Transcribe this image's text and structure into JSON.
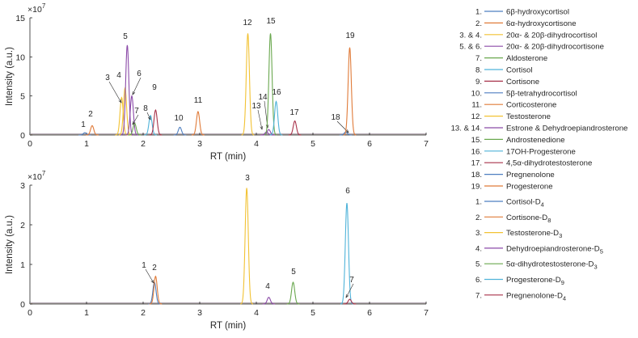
{
  "chart_data": [
    {
      "type": "line",
      "xlabel": "RT (min)",
      "ylabel": "Intensity (a.u.)",
      "exponent_label": "×10",
      "exponent_power": "7",
      "xlim": [
        0,
        7
      ],
      "ylim": [
        0,
        15
      ],
      "xticks": [
        0,
        1,
        2,
        3,
        4,
        5,
        6,
        7
      ],
      "yticks": [
        0,
        5,
        10,
        15
      ],
      "peaks": [
        {
          "label": "1",
          "x": 0.97,
          "y": 0.3,
          "color": "#4e7fc0"
        },
        {
          "label": "2",
          "x": 1.1,
          "y": 1.2,
          "color": "#e07b39"
        },
        {
          "label": "3",
          "x": 1.62,
          "y": 4.8,
          "color": "#f2c233"
        },
        {
          "label": "4",
          "x": 1.68,
          "y": 6.0,
          "color": "#f2c233"
        },
        {
          "label": "5",
          "x": 1.72,
          "y": 11.5,
          "color": "#8b4aa8"
        },
        {
          "label": "6",
          "x": 1.8,
          "y": 5.0,
          "color": "#8b4aa8"
        },
        {
          "label": "7",
          "x": 1.85,
          "y": 1.5,
          "color": "#6aa84f"
        },
        {
          "label": "8",
          "x": 2.13,
          "y": 2.5,
          "color": "#4fb3d9"
        },
        {
          "label": "9",
          "x": 2.22,
          "y": 3.2,
          "color": "#a8324a"
        },
        {
          "label": "10",
          "x": 2.65,
          "y": 1.0,
          "color": "#4e7fc0"
        },
        {
          "label": "11",
          "x": 2.97,
          "y": 3.0,
          "color": "#e07b39"
        },
        {
          "label": "12",
          "x": 3.85,
          "y": 13.0,
          "color": "#f2c233"
        },
        {
          "label": "13",
          "x": 4.18,
          "y": 0.4,
          "color": "#8b4aa8"
        },
        {
          "label": "14",
          "x": 4.22,
          "y": 0.7,
          "color": "#8b4aa8"
        },
        {
          "label": "15",
          "x": 4.25,
          "y": 13.0,
          "color": "#6aa84f"
        },
        {
          "label": "16",
          "x": 4.35,
          "y": 4.3,
          "color": "#4fb3d9"
        },
        {
          "label": "17",
          "x": 4.68,
          "y": 1.8,
          "color": "#a8324a"
        },
        {
          "label": "18",
          "x": 5.58,
          "y": 0.4,
          "color": "#4e7fc0"
        },
        {
          "label": "19",
          "x": 5.65,
          "y": 11.2,
          "color": "#e07b39"
        }
      ]
    },
    {
      "type": "line",
      "xlabel": "RT (min)",
      "ylabel": "Intensity (a.u.)",
      "exponent_label": "×10",
      "exponent_power": "7",
      "xlim": [
        0,
        7
      ],
      "ylim": [
        0,
        3
      ],
      "xticks": [
        0,
        1,
        2,
        3,
        4,
        5,
        6,
        7
      ],
      "yticks": [
        0,
        1,
        2,
        3
      ],
      "peaks": [
        {
          "label": "1",
          "x": 2.2,
          "y": 0.55,
          "color": "#4e7fc0"
        },
        {
          "label": "2",
          "x": 2.22,
          "y": 0.7,
          "color": "#e07b39"
        },
        {
          "label": "3",
          "x": 3.83,
          "y": 2.93,
          "color": "#f2c233"
        },
        {
          "label": "4",
          "x": 4.22,
          "y": 0.17,
          "color": "#8b4aa8"
        },
        {
          "label": "5",
          "x": 4.65,
          "y": 0.55,
          "color": "#6aa84f"
        },
        {
          "label": "6",
          "x": 5.6,
          "y": 2.55,
          "color": "#4fb3d9"
        },
        {
          "label": "7",
          "x": 5.65,
          "y": 0.12,
          "color": "#a8324a"
        }
      ]
    }
  ],
  "legend_top": [
    {
      "num": "1.",
      "name": "6β-hydroxycortisol",
      "color": "#4e7fc0"
    },
    {
      "num": "2.",
      "name": "6α-hydroxycortisone",
      "color": "#e07b39"
    },
    {
      "num": "3. & 4.",
      "name": "20α- & 20β-dihydrocortisol",
      "color": "#f2c233"
    },
    {
      "num": "5. & 6.",
      "name": "20α- & 20β-dihydrocortisone",
      "color": "#8b4aa8"
    },
    {
      "num": "7.",
      "name": "Aldosterone",
      "color": "#6aa84f"
    },
    {
      "num": "8.",
      "name": "Cortisol",
      "color": "#4fb3d9"
    },
    {
      "num": "9.",
      "name": "Cortisone",
      "color": "#a8324a"
    },
    {
      "num": "10.",
      "name": "5β-tetrahydrocortisol",
      "color": "#4e7fc0"
    },
    {
      "num": "11.",
      "name": "Corticosterone",
      "color": "#e07b39"
    },
    {
      "num": "12.",
      "name": "Testosterone",
      "color": "#f2c233"
    },
    {
      "num": "13. & 14.",
      "name": "Estrone & Dehydroepiandrosterone",
      "color": "#8b4aa8"
    },
    {
      "num": "15.",
      "name": "Androstenedione",
      "color": "#6aa84f"
    },
    {
      "num": "16.",
      "name": "17OH-Progesterone",
      "color": "#4fb3d9"
    },
    {
      "num": "17.",
      "name": "4,5α-dihydrotestosterone",
      "color": "#a8324a"
    },
    {
      "num": "18.",
      "name": "Pregnenolone",
      "color": "#4e7fc0"
    },
    {
      "num": "19.",
      "name": "Progesterone",
      "color": "#e07b39"
    }
  ],
  "legend_bottom": [
    {
      "num": "1.",
      "name": "Cortisol-D",
      "sub": "4",
      "color": "#4e7fc0"
    },
    {
      "num": "2.",
      "name": "Cortisone-D",
      "sub": "8",
      "color": "#e07b39"
    },
    {
      "num": "3.",
      "name": "Testosterone-D",
      "sub": "3",
      "color": "#f2c233"
    },
    {
      "num": "4.",
      "name": "Dehydroepiandrosterone-D",
      "sub": "5",
      "color": "#8b4aa8"
    },
    {
      "num": "5.",
      "name": "5α-dihydrotestosterone-D",
      "sub": "3",
      "color": "#6aa84f"
    },
    {
      "num": "6.",
      "name": "Progesterone-D",
      "sub": "9",
      "color": "#4fb3d9"
    },
    {
      "num": "7.",
      "name": "Pregnenolone-D",
      "sub": "4",
      "color": "#a8324a"
    }
  ]
}
